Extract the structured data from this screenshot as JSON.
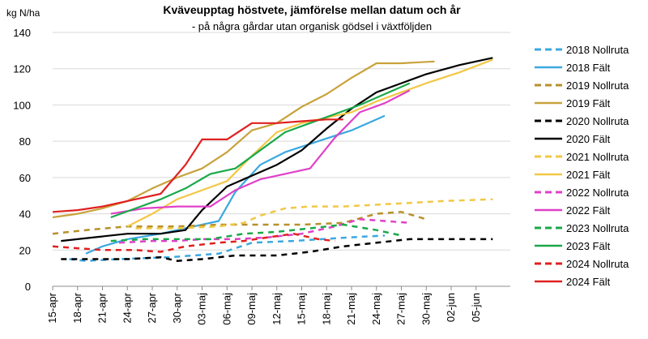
{
  "chart_data": {
    "type": "line",
    "title": "Kväveupptag höstvete, jämförelse mellan datum och år",
    "subtitle": "- på några gårdar utan organisk gödsel i växtföljden",
    "ylabel": "kg N/ha",
    "xlabel": "",
    "ylim": [
      0,
      140
    ],
    "yticks": [
      0,
      20,
      40,
      60,
      80,
      100,
      120,
      140
    ],
    "x_ticks": [
      "15-apr",
      "18-apr",
      "21-apr",
      "24-apr",
      "27-apr",
      "30-apr",
      "03-maj",
      "06-maj",
      "09-maj",
      "12-maj",
      "15-maj",
      "18-maj",
      "21-maj",
      "24-maj",
      "27-maj",
      "30-maj",
      "02-jun",
      "05-jun"
    ],
    "grid": "horizontal",
    "legend_position": "right",
    "series": [
      {
        "name": "2018 Nollruta",
        "color": "#3aa8e0",
        "dash": "dashed",
        "points": [
          [
            "17-apr",
            15
          ],
          [
            "19-apr",
            14
          ],
          [
            "23-apr",
            15
          ],
          [
            "29-apr",
            16
          ],
          [
            "05-maj",
            18
          ],
          [
            "09-maj",
            24
          ],
          [
            "14-maj",
            25
          ],
          [
            "21-maj",
            27
          ],
          [
            "25-maj",
            28
          ]
        ]
      },
      {
        "name": "2018 Fält",
        "color": "#3aa8e0",
        "dash": "solid",
        "points": [
          [
            "19-apr",
            18
          ],
          [
            "21-apr",
            22
          ],
          [
            "24-apr",
            26
          ],
          [
            "28-apr",
            29
          ],
          [
            "02-maj",
            33
          ],
          [
            "05-maj",
            36
          ],
          [
            "07-maj",
            52
          ],
          [
            "10-maj",
            67
          ],
          [
            "13-maj",
            74
          ],
          [
            "17-maj",
            80
          ],
          [
            "21-maj",
            86
          ],
          [
            "25-maj",
            94
          ]
        ]
      },
      {
        "name": "2019 Nollruta",
        "color": "#b8902a",
        "dash": "dashed",
        "points": [
          [
            "15-apr",
            29
          ],
          [
            "19-apr",
            31
          ],
          [
            "24-apr",
            33
          ],
          [
            "30-apr",
            33
          ],
          [
            "05-maj",
            34
          ],
          [
            "10-maj",
            34
          ],
          [
            "15-maj",
            34
          ],
          [
            "20-maj",
            35
          ],
          [
            "24-maj",
            40
          ],
          [
            "27-maj",
            41
          ],
          [
            "30-maj",
            37
          ]
        ]
      },
      {
        "name": "2019 Fält",
        "color": "#c8a23b",
        "dash": "solid",
        "points": [
          [
            "15-apr",
            38
          ],
          [
            "18-apr",
            40
          ],
          [
            "21-apr",
            43
          ],
          [
            "24-apr",
            47
          ],
          [
            "27-apr",
            54
          ],
          [
            "30-apr",
            60
          ],
          [
            "03-maj",
            65
          ],
          [
            "06-maj",
            74
          ],
          [
            "09-maj",
            86
          ],
          [
            "12-maj",
            90
          ],
          [
            "15-maj",
            99
          ],
          [
            "18-maj",
            106
          ],
          [
            "21-maj",
            115
          ],
          [
            "24-maj",
            123
          ],
          [
            "27-maj",
            123
          ],
          [
            "31-maj",
            124
          ]
        ]
      },
      {
        "name": "2020 Nollruta",
        "color": "#000000",
        "dash": "dashed",
        "points": [
          [
            "16-apr",
            15
          ],
          [
            "20-apr",
            15
          ],
          [
            "24-apr",
            15
          ],
          [
            "28-apr",
            16
          ],
          [
            "30-apr",
            14
          ],
          [
            "03-maj",
            15
          ],
          [
            "07-maj",
            17
          ],
          [
            "12-maj",
            17
          ],
          [
            "16-maj",
            19
          ],
          [
            "20-maj",
            22
          ],
          [
            "24-maj",
            24
          ],
          [
            "28-maj",
            26
          ],
          [
            "31-maj",
            26
          ],
          [
            "04-jun",
            26
          ],
          [
            "07-jun",
            26
          ]
        ]
      },
      {
        "name": "2020 Fält",
        "color": "#000000",
        "dash": "solid",
        "points": [
          [
            "16-apr",
            25
          ],
          [
            "20-apr",
            27
          ],
          [
            "24-apr",
            29
          ],
          [
            "28-apr",
            29
          ],
          [
            "01-maj",
            31
          ],
          [
            "03-maj",
            42
          ],
          [
            "06-maj",
            55
          ],
          [
            "09-maj",
            61
          ],
          [
            "12-maj",
            67
          ],
          [
            "15-maj",
            75
          ],
          [
            "18-maj",
            87
          ],
          [
            "21-maj",
            98
          ],
          [
            "24-maj",
            107
          ],
          [
            "27-maj",
            112
          ],
          [
            "30-maj",
            117
          ],
          [
            "03-jun",
            122
          ],
          [
            "07-jun",
            126
          ]
        ]
      },
      {
        "name": "2021 Nollruta",
        "color": "#f2c744",
        "dash": "dashed",
        "points": [
          [
            "25-apr",
            32
          ],
          [
            "30-apr",
            32
          ],
          [
            "05-maj",
            33
          ],
          [
            "08-maj",
            35
          ],
          [
            "10-maj",
            39
          ],
          [
            "13-maj",
            43
          ],
          [
            "16-maj",
            44
          ],
          [
            "20-maj",
            44
          ],
          [
            "24-maj",
            45
          ],
          [
            "28-maj",
            46
          ],
          [
            "01-jun",
            47
          ],
          [
            "07-jun",
            48
          ]
        ]
      },
      {
        "name": "2021 Fält",
        "color": "#f2c744",
        "dash": "solid",
        "points": [
          [
            "24-apr",
            33
          ],
          [
            "27-apr",
            40
          ],
          [
            "30-apr",
            48
          ],
          [
            "03-maj",
            53
          ],
          [
            "06-maj",
            58
          ],
          [
            "09-maj",
            72
          ],
          [
            "12-maj",
            85
          ],
          [
            "15-maj",
            90
          ],
          [
            "18-maj",
            93
          ],
          [
            "21-maj",
            96
          ],
          [
            "24-maj",
            102
          ],
          [
            "27-maj",
            107
          ],
          [
            "30-maj",
            112
          ],
          [
            "03-jun",
            118
          ],
          [
            "07-jun",
            125
          ]
        ]
      },
      {
        "name": "2022 Nollruta",
        "color": "#e040c8",
        "dash": "dashed",
        "points": [
          [
            "23-apr",
            24
          ],
          [
            "27-apr",
            25
          ],
          [
            "30-apr",
            25
          ],
          [
            "03-maj",
            26
          ],
          [
            "07-maj",
            26
          ],
          [
            "11-maj",
            27
          ],
          [
            "15-maj",
            29
          ],
          [
            "19-maj",
            33
          ],
          [
            "22-maj",
            37
          ],
          [
            "25-maj",
            36
          ],
          [
            "28-maj",
            35
          ]
        ]
      },
      {
        "name": "2022 Fält",
        "color": "#e040c8",
        "dash": "solid",
        "points": [
          [
            "22-apr",
            40
          ],
          [
            "26-apr",
            43
          ],
          [
            "30-apr",
            44
          ],
          [
            "04-maj",
            44
          ],
          [
            "07-maj",
            53
          ],
          [
            "10-maj",
            59
          ],
          [
            "13-maj",
            62
          ],
          [
            "16-maj",
            65
          ],
          [
            "19-maj",
            82
          ],
          [
            "22-maj",
            96
          ],
          [
            "25-maj",
            101
          ],
          [
            "28-maj",
            108
          ]
        ]
      },
      {
        "name": "2023 Nollruta",
        "color": "#1aa84a",
        "dash": "dashed",
        "points": [
          [
            "22-apr",
            25
          ],
          [
            "26-apr",
            26
          ],
          [
            "30-apr",
            26
          ],
          [
            "04-maj",
            26
          ],
          [
            "08-maj",
            29
          ],
          [
            "12-maj",
            30
          ],
          [
            "16-maj",
            32
          ],
          [
            "20-maj",
            34
          ],
          [
            "24-maj",
            31
          ],
          [
            "27-maj",
            28
          ]
        ]
      },
      {
        "name": "2023 Fält",
        "color": "#1aa84a",
        "dash": "solid",
        "points": [
          [
            "22-apr",
            38
          ],
          [
            "25-apr",
            43
          ],
          [
            "28-apr",
            48
          ],
          [
            "01-maj",
            54
          ],
          [
            "04-maj",
            62
          ],
          [
            "07-maj",
            65
          ],
          [
            "10-maj",
            75
          ],
          [
            "13-maj",
            85
          ],
          [
            "16-maj",
            90
          ],
          [
            "19-maj",
            95
          ],
          [
            "22-maj",
            100
          ],
          [
            "25-maj",
            106
          ],
          [
            "28-maj",
            112
          ]
        ]
      },
      {
        "name": "2024 Nollruta",
        "color": "#e02020",
        "dash": "dashed",
        "points": [
          [
            "15-apr",
            22
          ],
          [
            "18-apr",
            21
          ],
          [
            "21-apr",
            20
          ],
          [
            "25-apr",
            20
          ],
          [
            "28-apr",
            19
          ],
          [
            "01-maj",
            22
          ],
          [
            "05-maj",
            24
          ],
          [
            "08-maj",
            25
          ],
          [
            "11-maj",
            27
          ],
          [
            "14-maj",
            29
          ],
          [
            "17-maj",
            26
          ],
          [
            "19-maj",
            25
          ]
        ]
      },
      {
        "name": "2024 Fält",
        "color": "#e02020",
        "dash": "solid",
        "points": [
          [
            "15-apr",
            41
          ],
          [
            "18-apr",
            42
          ],
          [
            "21-apr",
            44
          ],
          [
            "25-apr",
            48
          ],
          [
            "28-apr",
            51
          ],
          [
            "01-maj",
            67
          ],
          [
            "03-maj",
            81
          ],
          [
            "06-maj",
            81
          ],
          [
            "09-maj",
            90
          ],
          [
            "12-maj",
            90
          ],
          [
            "15-maj",
            91
          ],
          [
            "18-maj",
            92
          ],
          [
            "20-maj",
            92
          ]
        ]
      }
    ]
  }
}
